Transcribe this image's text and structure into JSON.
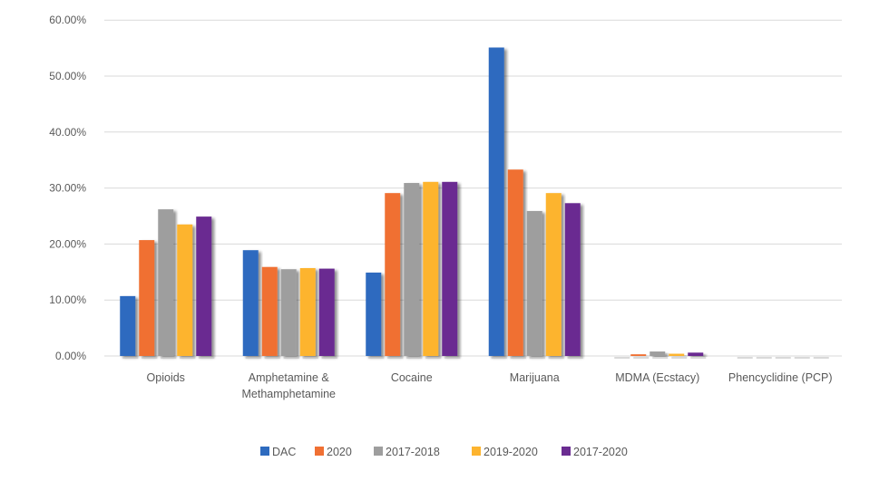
{
  "chart_data": {
    "type": "bar",
    "title": "",
    "xlabel": "",
    "ylabel": "",
    "ylim": [
      0,
      0.6
    ],
    "yticks": [
      0,
      0.1,
      0.2,
      0.3,
      0.4,
      0.5,
      0.6
    ],
    "ytick_labels": [
      "0.00%",
      "10.00%",
      "20.00%",
      "30.00%",
      "40.00%",
      "50.00%",
      "60.00%"
    ],
    "grid": true,
    "legend_position": "bottom",
    "categories": [
      [
        "Opioids"
      ],
      [
        "Amphetamine &",
        "Methamphetamine"
      ],
      [
        "Cocaine"
      ],
      [
        "Marijuana"
      ],
      [
        "MDMA (Ecstacy)"
      ],
      [
        "Phencyclidine (PCP)"
      ]
    ],
    "series": [
      {
        "name": "DAC",
        "color": "#2E6BBF",
        "values": [
          0.107,
          0.189,
          0.149,
          0.551,
          0.0,
          0.0
        ]
      },
      {
        "name": "2020",
        "color": "#F07033",
        "values": [
          0.207,
          0.159,
          0.291,
          0.333,
          0.003,
          0.0
        ]
      },
      {
        "name": "2017-2018",
        "color": "#9E9E9E",
        "values": [
          0.262,
          0.155,
          0.309,
          0.259,
          0.008,
          0.0
        ]
      },
      {
        "name": "2019-2020",
        "color": "#FDB42F",
        "values": [
          0.235,
          0.157,
          0.311,
          0.291,
          0.004,
          0.0
        ]
      },
      {
        "name": "2017-2020",
        "color": "#6A2C91",
        "values": [
          0.249,
          0.156,
          0.311,
          0.273,
          0.006,
          0.0
        ]
      }
    ]
  }
}
